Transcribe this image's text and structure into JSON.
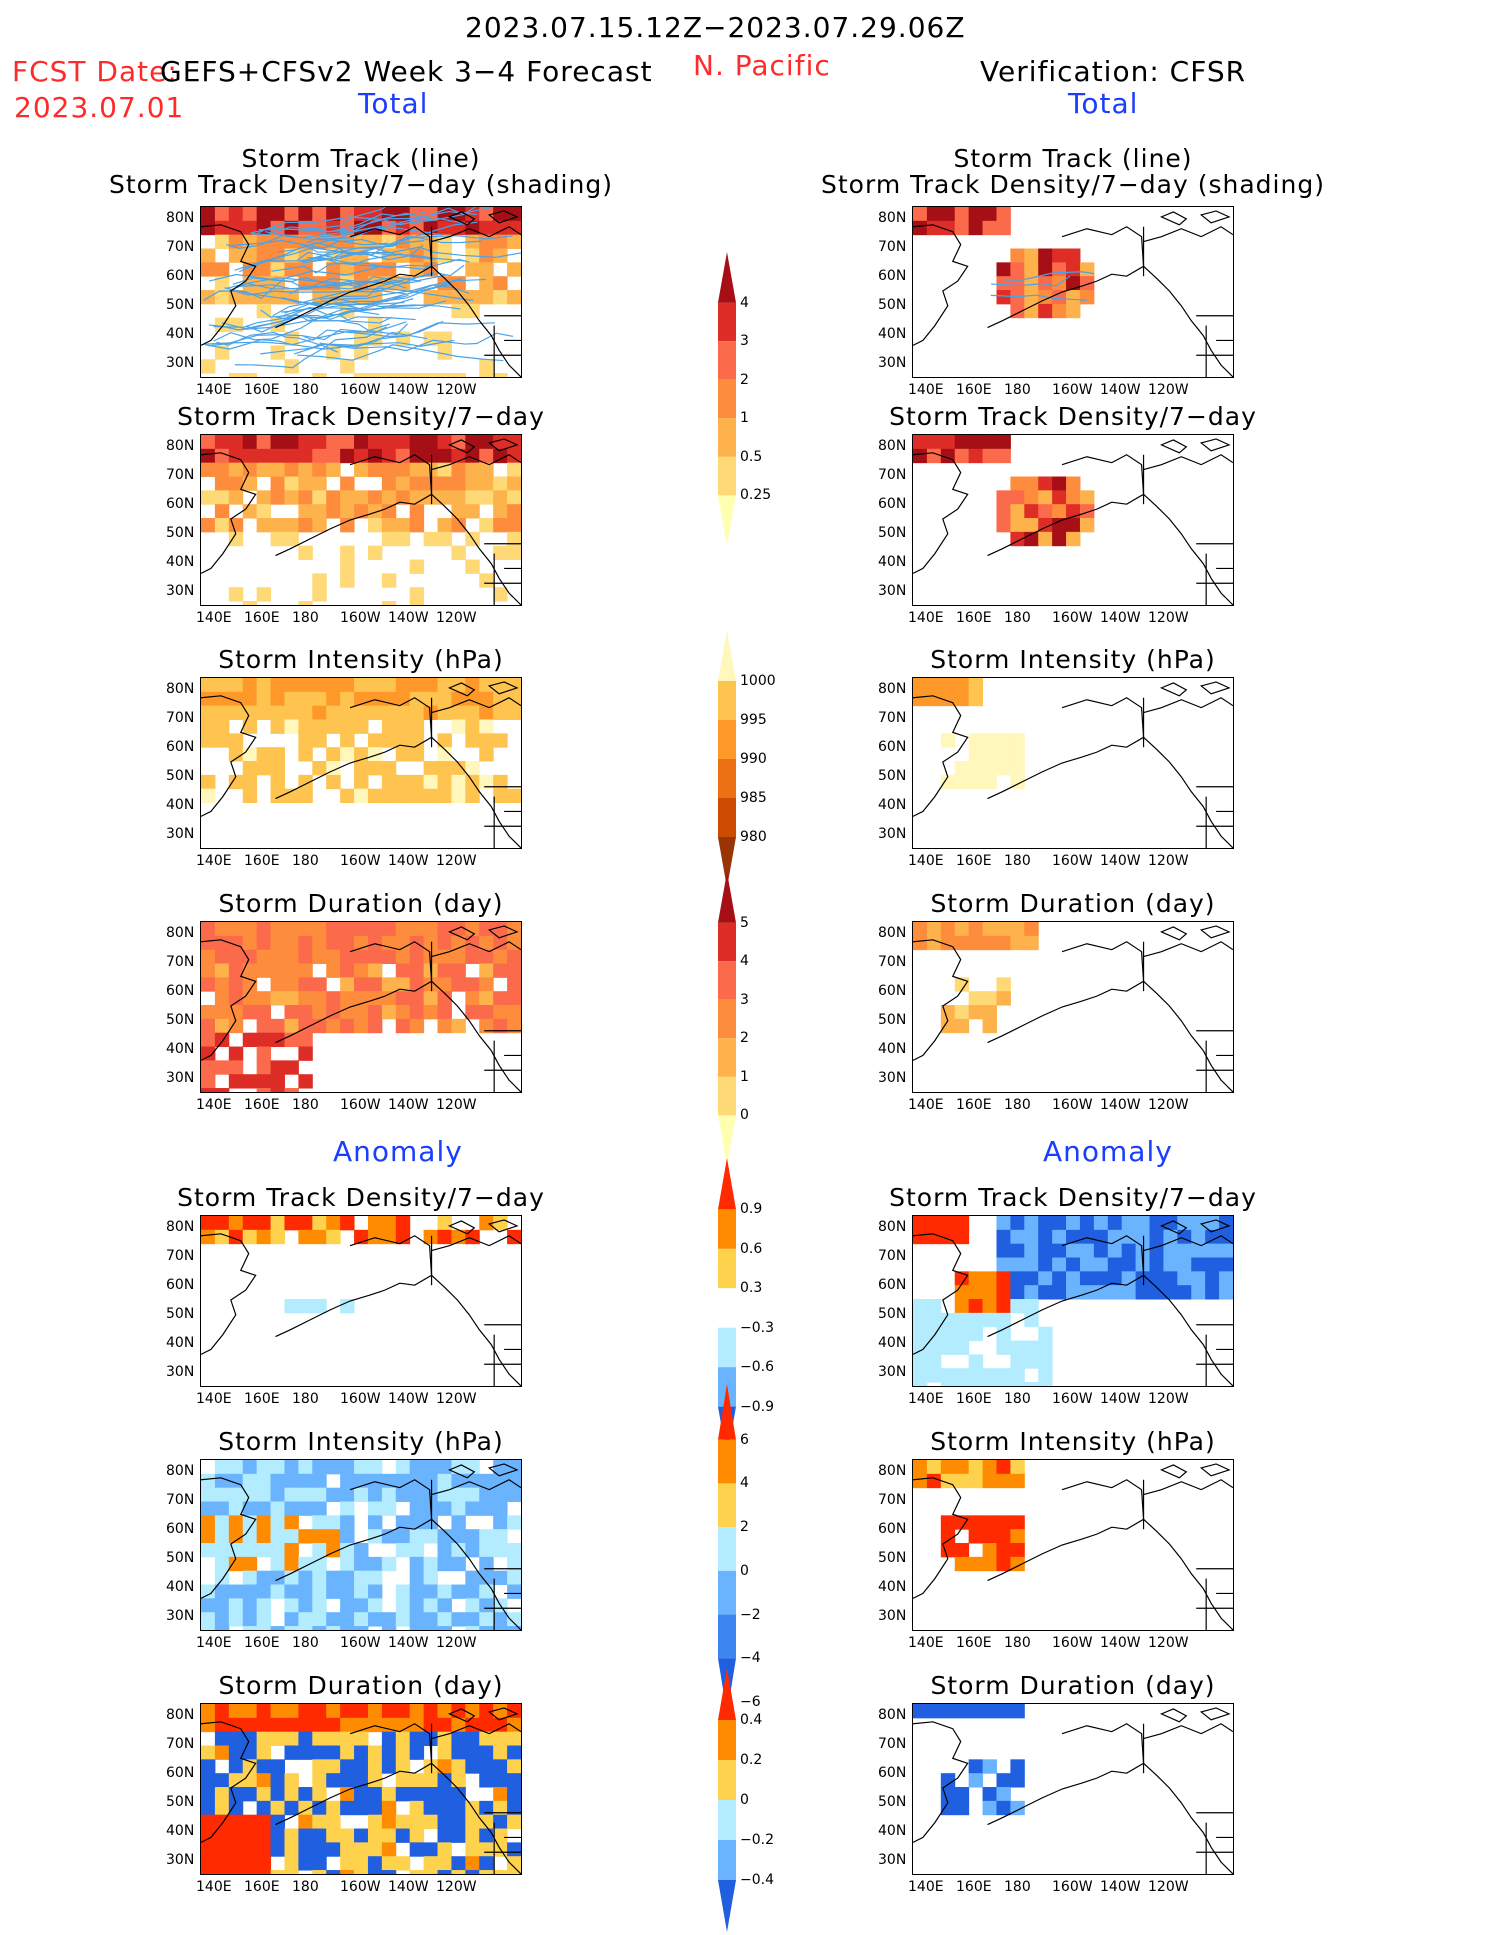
{
  "header": {
    "date_range": "2023.07.15.12Z−2023.07.29.06Z",
    "fcst_date_label": "FCST Date:",
    "model": "GEFS+CFSv2 Week 3−4 Forecast",
    "fcst_date_value": "2023.07.01",
    "region": "N. Pacific",
    "verification": "Verification: CFSR"
  },
  "left_column": {
    "total_label": "Total",
    "anomaly_label": "Anomaly",
    "panels": [
      {
        "title_lines": [
          "Storm Track (line)",
          "Storm Track Density/7−day (shading)"
        ]
      },
      {
        "title_lines": [
          "Storm Track Density/7−day"
        ]
      },
      {
        "title_lines": [
          "Storm Intensity (hPa)"
        ]
      },
      {
        "title_lines": [
          "Storm Duration (day)"
        ]
      },
      {
        "title_lines": [
          "Storm Track Density/7−day"
        ]
      },
      {
        "title_lines": [
          "Storm Intensity (hPa)"
        ]
      },
      {
        "title_lines": [
          "Storm Duration (day)"
        ]
      }
    ]
  },
  "right_column": {
    "total_label": "Total",
    "anomaly_label": "Anomaly",
    "panels": [
      {
        "title_lines": [
          "Storm Track (line)",
          "Storm Track Density/7−day (shading)"
        ]
      },
      {
        "title_lines": [
          "Storm Track Density/7−day"
        ]
      },
      {
        "title_lines": [
          "Storm Intensity (hPa)"
        ]
      },
      {
        "title_lines": [
          "Storm Duration (day)"
        ]
      },
      {
        "title_lines": [
          "Storm Track Density/7−day"
        ]
      },
      {
        "title_lines": [
          "Storm Intensity (hPa)"
        ]
      },
      {
        "title_lines": [
          "Storm Duration (day)"
        ]
      }
    ]
  },
  "axes": {
    "lat_labels": [
      "80N",
      "70N",
      "60N",
      "50N",
      "40N",
      "30N"
    ],
    "lon_labels": [
      "140E",
      "160E",
      "180",
      "160W",
      "140W",
      "120W"
    ]
  },
  "colorbars": [
    {
      "id": "density",
      "labels": [
        "4",
        "3",
        "2",
        "1",
        "0.5",
        "0.25"
      ],
      "colors": [
        "#a50f15",
        "#de2d26",
        "#fb6a4a",
        "#fd8d3c",
        "#feb24c",
        "#fed976",
        "#ffffb2"
      ]
    },
    {
      "id": "intensity",
      "labels": [
        "1000",
        "995",
        "990",
        "985",
        "980"
      ],
      "colors": [
        "#fff7bc",
        "#fec44f",
        "#fe9929",
        "#ec7014",
        "#cc4c02",
        "#993404"
      ]
    },
    {
      "id": "duration",
      "labels": [
        "5",
        "4",
        "3",
        "2",
        "1",
        "0"
      ],
      "colors": [
        "#a50f15",
        "#de2d26",
        "#fb6a4a",
        "#fd8d3c",
        "#feb24c",
        "#fed976",
        "#ffffb2"
      ]
    },
    {
      "id": "density_anom",
      "labels": [
        "0.9",
        "0.6",
        "0.3",
        "−0.3",
        "−0.6",
        "−0.9"
      ],
      "colors": [
        "#ff2a00",
        "#ff8c00",
        "#ffd24d",
        "#ffffff",
        "#b3ecff",
        "#6ab4ff",
        "#1f5fe0"
      ]
    },
    {
      "id": "intensity_anom",
      "labels": [
        "6",
        "4",
        "2",
        "0",
        "−2",
        "−4",
        "−6"
      ],
      "colors": [
        "#ff2a00",
        "#ff8c00",
        "#ffd24d",
        "#b3ecff",
        "#6ab4ff",
        "#3d85f0",
        "#1f5fe0"
      ]
    },
    {
      "id": "duration_anom",
      "labels": [
        "0.4",
        "0.2",
        "0",
        "−0.2",
        "−0.4"
      ],
      "colors": [
        "#ff2a00",
        "#ff8c00",
        "#ffd24d",
        "#b3ecff",
        "#6ab4ff",
        "#1f5fe0"
      ]
    }
  ]
}
